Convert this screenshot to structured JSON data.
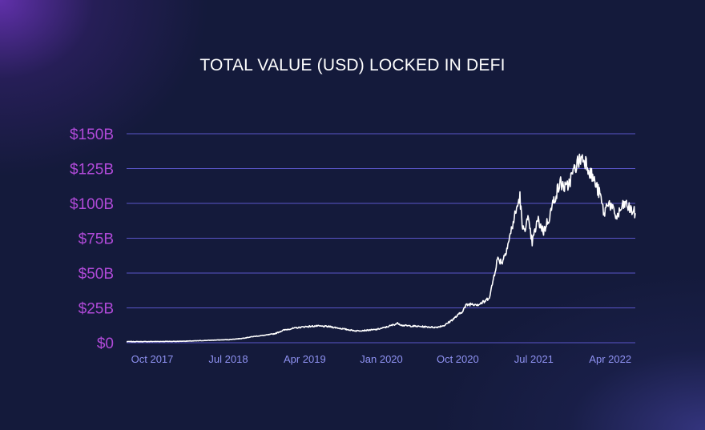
{
  "chart_data": {
    "type": "line",
    "title": "TOTAL VALUE (USD) LOCKED IN DEFI",
    "xlabel": "",
    "ylabel": "",
    "y_unit": "USD billions",
    "ylim": [
      0,
      150
    ],
    "xlim": [
      "2017-07-01",
      "2022-06-30"
    ],
    "y_ticks": [
      {
        "value": 0,
        "label": "$0"
      },
      {
        "value": 25,
        "label": "$25B"
      },
      {
        "value": 50,
        "label": "$50B"
      },
      {
        "value": 75,
        "label": "$75B"
      },
      {
        "value": 100,
        "label": "$100B"
      },
      {
        "value": 125,
        "label": "$125B"
      },
      {
        "value": 150,
        "label": "$150B"
      }
    ],
    "x_ticks": [
      {
        "date": "2017-10-01",
        "label": "Oct 2017"
      },
      {
        "date": "2018-07-01",
        "label": "Jul 2018"
      },
      {
        "date": "2019-04-01",
        "label": "Apr 2019"
      },
      {
        "date": "2020-01-01",
        "label": "Jan 2020"
      },
      {
        "date": "2020-10-01",
        "label": "Oct 2020"
      },
      {
        "date": "2021-07-01",
        "label": "Jul 2021"
      },
      {
        "date": "2022-04-01",
        "label": "Apr 2022"
      }
    ],
    "grid": "horizontal",
    "legend": "none",
    "colors": {
      "line": "#ffffff",
      "grid": "#5a55c8",
      "ytick": "#b04ad8",
      "xtick": "#8f92f2",
      "background": "#141a3b"
    },
    "series": [
      {
        "points": [
          [
            "2017-07-01",
            0.8
          ],
          [
            "2017-09-01",
            0.8
          ],
          [
            "2017-11-01",
            0.9
          ],
          [
            "2018-01-01",
            1.0
          ],
          [
            "2018-03-01",
            1.3
          ],
          [
            "2018-05-01",
            1.8
          ],
          [
            "2018-07-01",
            2.2
          ],
          [
            "2018-08-15",
            3.0
          ],
          [
            "2018-10-01",
            4.5
          ],
          [
            "2018-11-15",
            5.5
          ],
          [
            "2018-12-15",
            6.5
          ],
          [
            "2019-01-15",
            9.0
          ],
          [
            "2019-02-15",
            10.2
          ],
          [
            "2019-04-01",
            11.5
          ],
          [
            "2019-05-15",
            12.0
          ],
          [
            "2019-07-01",
            11.5
          ],
          [
            "2019-08-15",
            10.0
          ],
          [
            "2019-10-01",
            8.5
          ],
          [
            "2019-11-15",
            9.0
          ],
          [
            "2019-12-15",
            9.5
          ],
          [
            "2020-01-15",
            11.0
          ],
          [
            "2020-02-15",
            13.0
          ],
          [
            "2020-03-01",
            14.0
          ],
          [
            "2020-03-15",
            12.5
          ],
          [
            "2020-04-15",
            12.0
          ],
          [
            "2020-06-01",
            11.5
          ],
          [
            "2020-07-15",
            11.0
          ],
          [
            "2020-08-15",
            12.5
          ],
          [
            "2020-09-15",
            17.0
          ],
          [
            "2020-10-15",
            22.0
          ],
          [
            "2020-11-01",
            27.0
          ],
          [
            "2020-11-20",
            28.0
          ],
          [
            "2020-12-15",
            27.5
          ],
          [
            "2021-01-10",
            30.0
          ],
          [
            "2021-01-25",
            34.0
          ],
          [
            "2021-02-10",
            50.0
          ],
          [
            "2021-02-20",
            60.0
          ],
          [
            "2021-03-10",
            58.0
          ],
          [
            "2021-04-01",
            72.0
          ],
          [
            "2021-04-20",
            88.0
          ],
          [
            "2021-05-12",
            105.0
          ],
          [
            "2021-05-22",
            80.0
          ],
          [
            "2021-06-10",
            88.0
          ],
          [
            "2021-06-25",
            72.0
          ],
          [
            "2021-07-15",
            88.0
          ],
          [
            "2021-08-05",
            80.0
          ],
          [
            "2021-08-25",
            90.0
          ],
          [
            "2021-09-15",
            105.0
          ],
          [
            "2021-10-05",
            115.0
          ],
          [
            "2021-10-25",
            110.0
          ],
          [
            "2021-11-15",
            120.0
          ],
          [
            "2021-12-01",
            128.0
          ],
          [
            "2021-12-20",
            133.0
          ],
          [
            "2022-01-05",
            130.0
          ],
          [
            "2022-01-20",
            122.0
          ],
          [
            "2022-02-05",
            115.0
          ],
          [
            "2022-02-25",
            105.0
          ],
          [
            "2022-03-10",
            92.0
          ],
          [
            "2022-03-25",
            102.0
          ],
          [
            "2022-04-10",
            95.0
          ],
          [
            "2022-04-25",
            90.0
          ],
          [
            "2022-05-10",
            96.0
          ],
          [
            "2022-05-25",
            100.0
          ],
          [
            "2022-06-10",
            96.0
          ],
          [
            "2022-06-30",
            93.0
          ]
        ]
      }
    ]
  }
}
